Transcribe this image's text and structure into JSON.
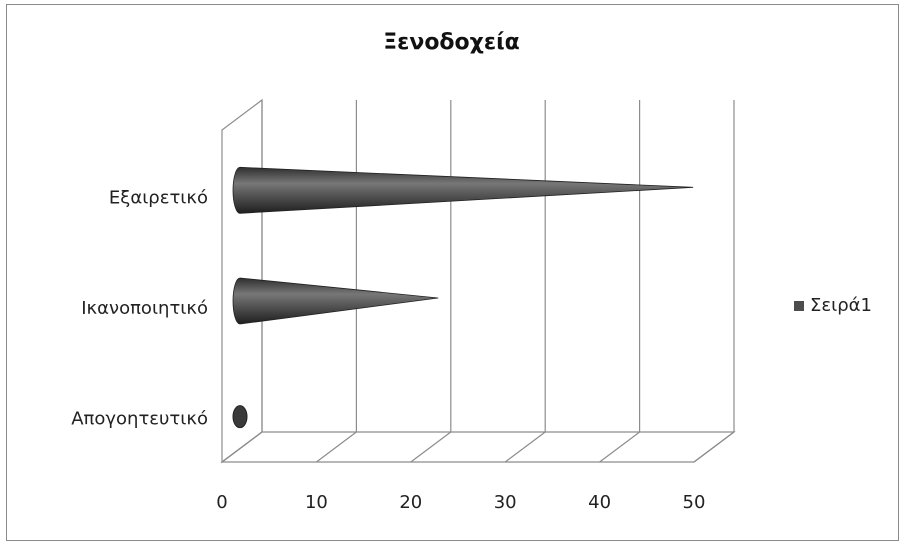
{
  "chart_data": {
    "type": "bar",
    "subtype": "horizontal-3d-cone",
    "title": "Ξενοδοχεία",
    "categories": [
      "Εξαιρετικό",
      "Ικανοποιητικό",
      "Απογοητευτικό"
    ],
    "series": [
      {
        "name": "Σειρά1",
        "values": [
          48,
          21,
          1
        ]
      }
    ],
    "xlim": [
      0,
      50
    ],
    "xticks": [
      0,
      10,
      20,
      30,
      40,
      50
    ],
    "grid": true,
    "legend_position": "right",
    "colors": {
      "series": "#4d4d4d",
      "grid": "#8c8c8c"
    }
  }
}
